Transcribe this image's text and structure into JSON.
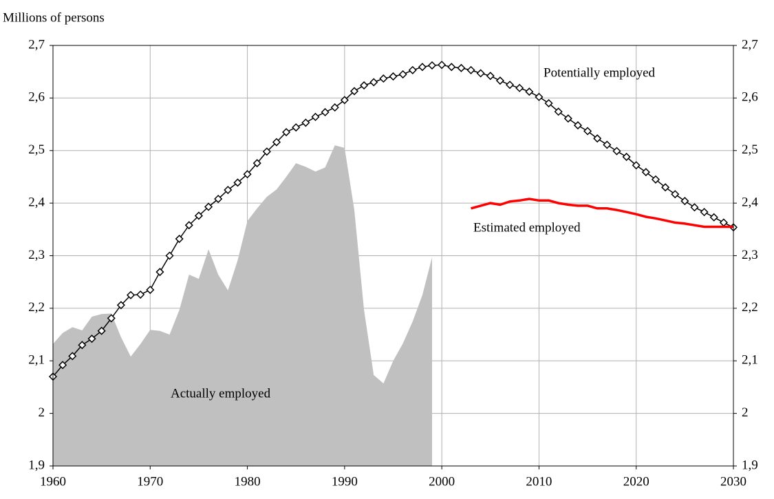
{
  "chart_data": {
    "type": "line",
    "y_axis_label": "Millions of persons",
    "x": [
      1960,
      1961,
      1962,
      1963,
      1964,
      1965,
      1966,
      1967,
      1968,
      1969,
      1970,
      1971,
      1972,
      1973,
      1974,
      1975,
      1976,
      1977,
      1978,
      1979,
      1980,
      1981,
      1982,
      1983,
      1984,
      1985,
      1986,
      1987,
      1988,
      1989,
      1990,
      1991,
      1992,
      1993,
      1994,
      1995,
      1996,
      1997,
      1998,
      1999,
      2000,
      2001,
      2002,
      2003,
      2004,
      2005,
      2006,
      2007,
      2008,
      2009,
      2010,
      2011,
      2012,
      2013,
      2014,
      2015,
      2016,
      2017,
      2018,
      2019,
      2020,
      2021,
      2022,
      2023,
      2024,
      2025,
      2026,
      2027,
      2028,
      2029,
      2030
    ],
    "series": [
      {
        "name": "Actually employed",
        "color": "#c0c0c0",
        "kind": "area",
        "values": [
          2.132,
          2.153,
          2.164,
          2.158,
          2.184,
          2.189,
          2.19,
          2.145,
          2.108,
          2.132,
          2.159,
          2.157,
          2.15,
          2.197,
          2.264,
          2.256,
          2.312,
          2.264,
          2.234,
          2.291,
          2.366,
          2.39,
          2.412,
          2.426,
          2.45,
          2.476,
          2.469,
          2.46,
          2.468,
          2.51,
          2.505,
          2.387,
          2.197,
          2.073,
          2.057,
          2.1,
          2.133,
          2.175,
          2.225,
          2.297,
          null,
          null,
          null,
          null,
          null,
          null,
          null,
          null,
          null,
          null,
          null,
          null,
          null,
          null,
          null,
          null,
          null,
          null,
          null,
          null,
          null,
          null,
          null,
          null,
          null,
          null,
          null,
          null,
          null,
          null,
          null
        ]
      },
      {
        "name": "Potentially employed",
        "color": "#000000",
        "kind": "line",
        "marker": "diamond",
        "values": [
          2.07,
          2.092,
          2.109,
          2.13,
          2.142,
          2.157,
          2.181,
          2.206,
          2.225,
          2.226,
          2.235,
          2.269,
          2.3,
          2.332,
          2.358,
          2.376,
          2.393,
          2.408,
          2.425,
          2.439,
          2.455,
          2.476,
          2.498,
          2.516,
          2.535,
          2.544,
          2.553,
          2.564,
          2.573,
          2.582,
          2.596,
          2.613,
          2.624,
          2.63,
          2.637,
          2.641,
          2.645,
          2.653,
          2.659,
          2.662,
          2.663,
          2.659,
          2.657,
          2.653,
          2.647,
          2.642,
          2.633,
          2.625,
          2.619,
          2.612,
          2.602,
          2.59,
          2.574,
          2.561,
          2.548,
          2.537,
          2.523,
          2.511,
          2.499,
          2.488,
          2.472,
          2.459,
          2.445,
          2.43,
          2.417,
          2.404,
          2.392,
          2.383,
          2.373,
          2.363,
          2.354
        ]
      },
      {
        "name": "Estimated employed",
        "color": "#ff0000",
        "kind": "line",
        "values": [
          null,
          null,
          null,
          null,
          null,
          null,
          null,
          null,
          null,
          null,
          null,
          null,
          null,
          null,
          null,
          null,
          null,
          null,
          null,
          null,
          null,
          null,
          null,
          null,
          null,
          null,
          null,
          null,
          null,
          null,
          null,
          null,
          null,
          null,
          null,
          null,
          null,
          null,
          null,
          null,
          null,
          null,
          null,
          2.39,
          2.395,
          2.4,
          2.397,
          2.403,
          2.405,
          2.408,
          2.405,
          2.405,
          2.4,
          2.397,
          2.395,
          2.395,
          2.39,
          2.39,
          2.387,
          2.383,
          2.379,
          2.374,
          2.371,
          2.367,
          2.363,
          2.361,
          2.358,
          2.355,
          2.355,
          2.355,
          2.355
        ]
      }
    ],
    "xlim": [
      1960,
      2030
    ],
    "xticks": [
      1960,
      1970,
      1980,
      1990,
      2000,
      2010,
      2020,
      2030
    ],
    "ylim": [
      1.9,
      2.7
    ],
    "yticks": [
      {
        "value": 1.9,
        "label": "1,9"
      },
      2,
      {
        "value": 2.1,
        "label": "2,1"
      },
      {
        "value": 2.2,
        "label": "2,2"
      },
      {
        "value": 2.3,
        "label": "2,3"
      },
      {
        "value": 2.4,
        "label": "2,4"
      },
      {
        "value": 2.5,
        "label": "2,5"
      },
      {
        "value": 2.6,
        "label": "2,6"
      },
      {
        "value": 2.7,
        "label": "2,7"
      }
    ],
    "right_axis_mirror": true,
    "grid": true
  }
}
